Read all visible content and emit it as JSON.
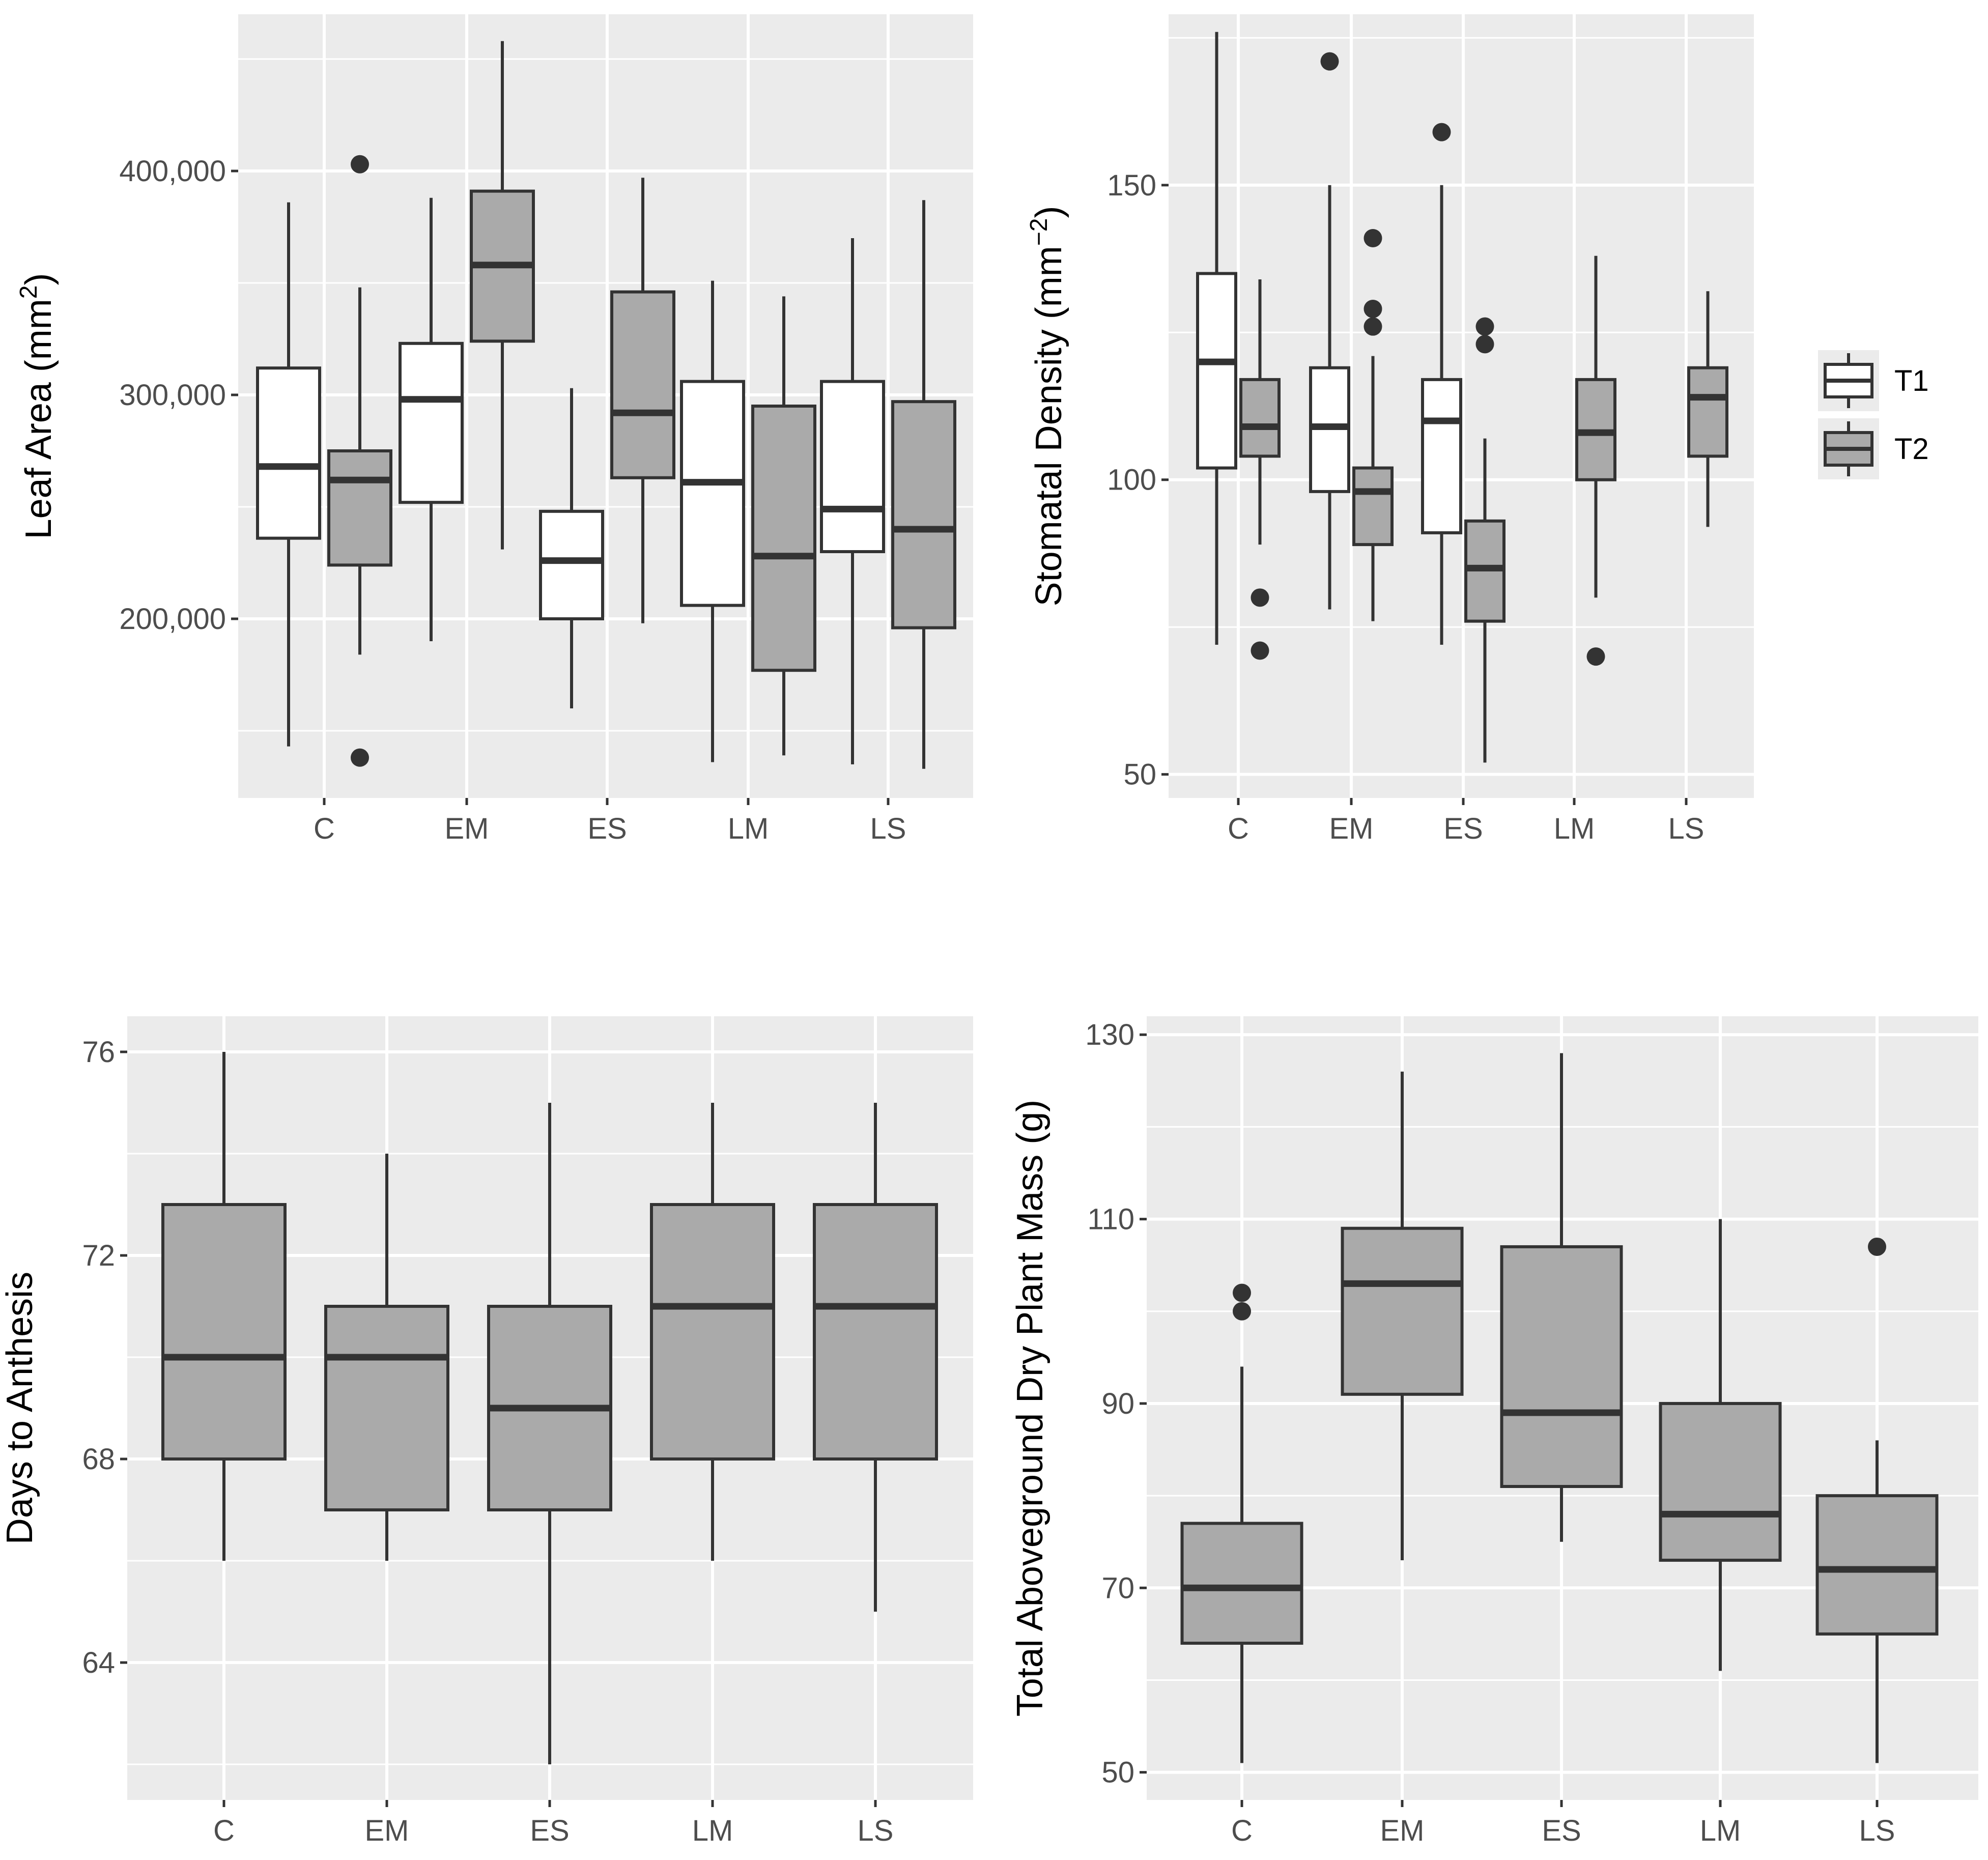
{
  "colors": {
    "panel": "#ebebeb",
    "grid": "#ffffff",
    "box_line": "#333333",
    "T1": "#ffffff",
    "T2": "#aaaaaa",
    "tick_text": "#4d4d4d"
  },
  "legend": {
    "items": [
      {
        "label": "T1",
        "fill": "#ffffff"
      },
      {
        "label": "T2",
        "fill": "#aaaaaa"
      }
    ]
  },
  "chart_data": [
    {
      "id": "leaf",
      "type": "boxplot",
      "ylabel": "Leaf Area (mm",
      "ylabel_sup": "2",
      "ylabel_end": ")",
      "categories": [
        "C",
        "EM",
        "ES",
        "LM",
        "LS"
      ],
      "ylim": [
        120000,
        470000
      ],
      "yticks": [
        200000,
        300000,
        400000
      ],
      "ytick_labels": [
        "200,000",
        "300,000",
        "400,000"
      ],
      "dodged": true,
      "boxes": [
        {
          "cat": "C",
          "group": "T1",
          "lower": 143000,
          "q1": 236000,
          "median": 268000,
          "q3": 312000,
          "upper": 386000,
          "outliers": []
        },
        {
          "cat": "C",
          "group": "T2",
          "lower": 184000,
          "q1": 224000,
          "median": 262000,
          "q3": 275000,
          "upper": 348000,
          "outliers": [
            138000,
            403000
          ]
        },
        {
          "cat": "EM",
          "group": "T1",
          "lower": 190000,
          "q1": 252000,
          "median": 298000,
          "q3": 323000,
          "upper": 388000,
          "outliers": []
        },
        {
          "cat": "EM",
          "group": "T2",
          "lower": 231000,
          "q1": 324000,
          "median": 358000,
          "q3": 391000,
          "upper": 458000,
          "outliers": []
        },
        {
          "cat": "ES",
          "group": "T1",
          "lower": 160000,
          "q1": 200000,
          "median": 226000,
          "q3": 248000,
          "upper": 303000,
          "outliers": []
        },
        {
          "cat": "ES",
          "group": "T2",
          "lower": 198000,
          "q1": 263000,
          "median": 292000,
          "q3": 346000,
          "upper": 397000,
          "outliers": []
        },
        {
          "cat": "LM",
          "group": "T1",
          "lower": 136000,
          "q1": 206000,
          "median": 261000,
          "q3": 306000,
          "upper": 351000,
          "outliers": []
        },
        {
          "cat": "LM",
          "group": "T2",
          "lower": 139000,
          "q1": 177000,
          "median": 228000,
          "q3": 295000,
          "upper": 344000,
          "outliers": []
        },
        {
          "cat": "LS",
          "group": "T1",
          "lower": 135000,
          "q1": 230000,
          "median": 249000,
          "q3": 306000,
          "upper": 370000,
          "outliers": []
        },
        {
          "cat": "LS",
          "group": "T2",
          "lower": 133000,
          "q1": 196000,
          "median": 240000,
          "q3": 297000,
          "upper": 387000,
          "outliers": []
        }
      ]
    },
    {
      "id": "stomata",
      "type": "boxplot",
      "ylabel": "Stomatal Density (mm",
      "ylabel_sup": "−2",
      "ylabel_end": ")",
      "categories": [
        "C",
        "EM",
        "ES",
        "LM",
        "LS"
      ],
      "ylim": [
        46,
        179
      ],
      "yticks": [
        50,
        100,
        150
      ],
      "ytick_labels": [
        "50",
        "100",
        "150"
      ],
      "dodged": true,
      "boxes": [
        {
          "cat": "C",
          "group": "T1",
          "lower": 72,
          "q1": 102,
          "median": 120,
          "q3": 135,
          "upper": 176,
          "outliers": []
        },
        {
          "cat": "C",
          "group": "T2",
          "lower": 89,
          "q1": 104,
          "median": 109,
          "q3": 117,
          "upper": 134,
          "outliers": [
            80,
            71
          ]
        },
        {
          "cat": "EM",
          "group": "T1",
          "lower": 78,
          "q1": 98,
          "median": 109,
          "q3": 119,
          "upper": 150,
          "outliers": [
            171
          ]
        },
        {
          "cat": "EM",
          "group": "T2",
          "lower": 76,
          "q1": 89,
          "median": 98,
          "q3": 102,
          "upper": 121,
          "outliers": [
            141,
            129,
            126
          ]
        },
        {
          "cat": "ES",
          "group": "T1",
          "lower": 72,
          "q1": 91,
          "median": 110,
          "q3": 117,
          "upper": 150,
          "outliers": [
            159
          ]
        },
        {
          "cat": "ES",
          "group": "T2",
          "lower": 52,
          "q1": 76,
          "median": 85,
          "q3": 93,
          "upper": 107,
          "outliers": [
            126,
            123
          ]
        },
        {
          "cat": "LM",
          "group": "T2",
          "lower": 80,
          "q1": 100,
          "median": 108,
          "q3": 117,
          "upper": 138,
          "outliers": [
            70
          ]
        },
        {
          "cat": "LS",
          "group": "T2",
          "lower": 92,
          "q1": 104,
          "median": 114,
          "q3": 119,
          "upper": 132,
          "outliers": []
        }
      ]
    },
    {
      "id": "anthesis",
      "type": "boxplot",
      "ylabel": "Days to Anthesis",
      "categories": [
        "C",
        "EM",
        "ES",
        "LM",
        "LS"
      ],
      "ylim": [
        61.3,
        76.7
      ],
      "yticks": [
        64,
        68,
        72,
        76
      ],
      "ytick_labels": [
        "64",
        "68",
        "72",
        "76"
      ],
      "dodged": false,
      "boxes": [
        {
          "cat": "C",
          "group": "T2",
          "lower": 66,
          "q1": 68,
          "median": 70,
          "q3": 73,
          "upper": 76,
          "outliers": []
        },
        {
          "cat": "EM",
          "group": "T2",
          "lower": 66,
          "q1": 67,
          "median": 70,
          "q3": 71,
          "upper": 74,
          "outliers": []
        },
        {
          "cat": "ES",
          "group": "T2",
          "lower": 62,
          "q1": 67,
          "median": 69,
          "q3": 71,
          "upper": 75,
          "outliers": []
        },
        {
          "cat": "LM",
          "group": "T2",
          "lower": 66,
          "q1": 68,
          "median": 71,
          "q3": 73,
          "upper": 75,
          "outliers": []
        },
        {
          "cat": "LS",
          "group": "T2",
          "lower": 65,
          "q1": 68,
          "median": 71,
          "q3": 73,
          "upper": 75,
          "outliers": []
        }
      ]
    },
    {
      "id": "mass",
      "type": "boxplot",
      "ylabel": "Total Aboveground Dry Plant Mass (g)",
      "categories": [
        "C",
        "EM",
        "ES",
        "LM",
        "LS"
      ],
      "ylim": [
        47,
        132
      ],
      "yticks": [
        50,
        70,
        90,
        110,
        130
      ],
      "ytick_labels": [
        "50",
        "70",
        "90",
        "110",
        "130"
      ],
      "dodged": false,
      "boxes": [
        {
          "cat": "C",
          "group": "T2",
          "lower": 51,
          "q1": 64,
          "median": 70,
          "q3": 77,
          "upper": 94,
          "outliers": [
            100,
            102
          ]
        },
        {
          "cat": "EM",
          "group": "T2",
          "lower": 73,
          "q1": 91,
          "median": 103,
          "q3": 109,
          "upper": 126,
          "outliers": []
        },
        {
          "cat": "ES",
          "group": "T2",
          "lower": 75,
          "q1": 81,
          "median": 89,
          "q3": 107,
          "upper": 128,
          "outliers": []
        },
        {
          "cat": "LM",
          "group": "T2",
          "lower": 61,
          "q1": 73,
          "median": 78,
          "q3": 90,
          "upper": 110,
          "outliers": []
        },
        {
          "cat": "LS",
          "group": "T2",
          "lower": 51,
          "q1": 65,
          "median": 72,
          "q3": 80,
          "upper": 86,
          "outliers": [
            107
          ]
        }
      ]
    }
  ]
}
